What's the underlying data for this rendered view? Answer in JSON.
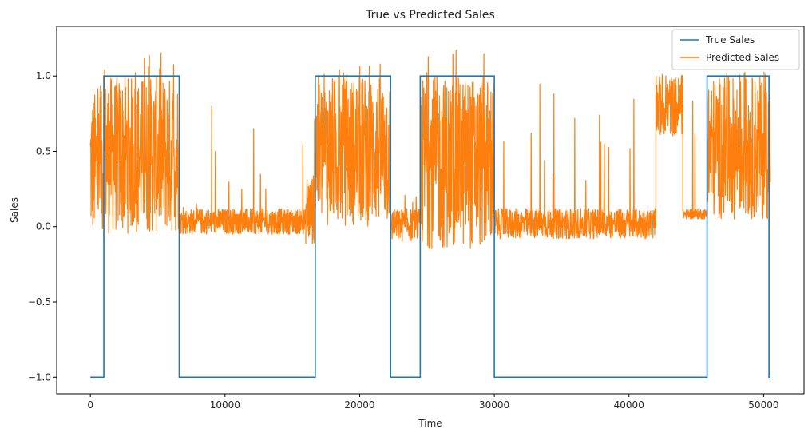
{
  "chart_data": {
    "type": "line",
    "title": "True vs Predicted Sales",
    "xlabel": "Time",
    "ylabel": "Sales",
    "xlim": [
      -2500,
      53000
    ],
    "ylim": [
      -1.11,
      1.33
    ],
    "xticks": [
      0,
      10000,
      20000,
      30000,
      40000,
      50000
    ],
    "xtick_labels": [
      "0",
      "10000",
      "20000",
      "30000",
      "40000",
      "50000"
    ],
    "yticks": [
      -1.0,
      -0.5,
      0.0,
      0.5,
      1.0
    ],
    "ytick_labels": [
      "−1.0",
      "−0.5",
      "0.0",
      "0.5",
      "1.0"
    ],
    "grid": false,
    "legend_position": "top-right",
    "series": [
      {
        "name": "True Sales",
        "color": "#1f77b4",
        "style": "step",
        "segments": [
          {
            "x_start": 0,
            "x_end": 1000,
            "value": -1
          },
          {
            "x_start": 1000,
            "x_end": 6600,
            "value": 1
          },
          {
            "x_start": 6600,
            "x_end": 16700,
            "value": -1
          },
          {
            "x_start": 16700,
            "x_end": 22300,
            "value": 1
          },
          {
            "x_start": 22300,
            "x_end": 24500,
            "value": -1
          },
          {
            "x_start": 24500,
            "x_end": 30000,
            "value": 1
          },
          {
            "x_start": 30000,
            "x_end": 45800,
            "value": -1
          },
          {
            "x_start": 45800,
            "x_end": 50400,
            "value": 1
          },
          {
            "x_start": 50400,
            "x_end": 50500,
            "value": -1
          }
        ]
      },
      {
        "name": "Predicted Sales",
        "color": "#ff7f0e",
        "style": "noisy-band",
        "segments": [
          {
            "x_start": 0,
            "x_end": 1000,
            "low": -0.1,
            "high": 0.9,
            "spike_max": 0.95
          },
          {
            "x_start": 1000,
            "x_end": 6600,
            "low": -0.05,
            "high": 1.0,
            "spike_max": 1.16
          },
          {
            "x_start": 6600,
            "x_end": 16000,
            "low": -0.05,
            "high": 0.12,
            "spike_max": 0.85
          },
          {
            "x_start": 16000,
            "x_end": 16700,
            "low": -0.12,
            "high": 0.35,
            "spike_max": 0.85
          },
          {
            "x_start": 16700,
            "x_end": 22300,
            "low": 0.0,
            "high": 1.0,
            "spike_max": 1.09
          },
          {
            "x_start": 22300,
            "x_end": 24500,
            "low": -0.1,
            "high": 0.12,
            "spike_max": 0.3
          },
          {
            "x_start": 24500,
            "x_end": 30000,
            "low": -0.15,
            "high": 1.0,
            "spike_max": 1.22
          },
          {
            "x_start": 30000,
            "x_end": 42000,
            "low": -0.08,
            "high": 0.12,
            "spike_max": 0.99
          },
          {
            "x_start": 42000,
            "x_end": 44000,
            "low": 0.6,
            "high": 1.0,
            "spike_max": 1.01
          },
          {
            "x_start": 44000,
            "x_end": 45800,
            "low": 0.05,
            "high": 0.12,
            "spike_max": 0.95
          },
          {
            "x_start": 45800,
            "x_end": 50500,
            "low": 0.05,
            "high": 1.0,
            "spike_max": 1.03
          }
        ]
      }
    ]
  }
}
